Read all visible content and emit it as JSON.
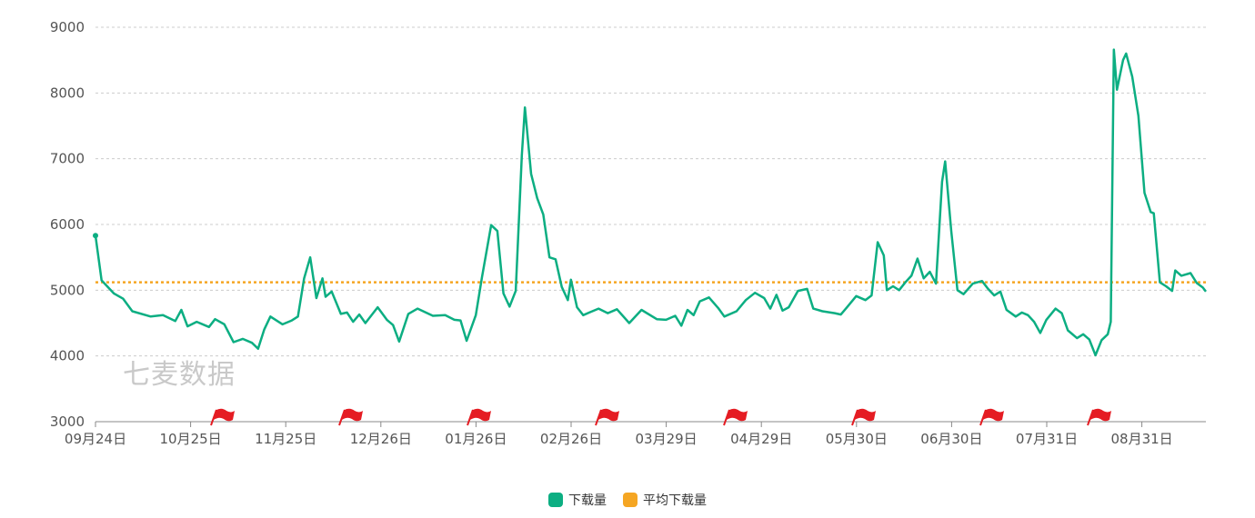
{
  "watermark": "七麦数据",
  "colors": {
    "series": "#0cae82",
    "average": "#f5a623",
    "flag": "#e51c23",
    "grid": "#cccccc",
    "axis": "#888888"
  },
  "chart_data": {
    "type": "line",
    "x_ticks": [
      "09月24日",
      "10月25日",
      "11月25日",
      "12月26日",
      "01月26日",
      "02月26日",
      "03月29日",
      "04月29日",
      "05月30日",
      "06月30日",
      "07月31日",
      "08月31日"
    ],
    "y_ticks": [
      3000,
      4000,
      5000,
      6000,
      7000,
      8000,
      9000
    ],
    "ylim": [
      3000,
      9000
    ],
    "x_range_days": [
      0,
      362
    ],
    "series": [
      {
        "name": "下载量",
        "points": [
          [
            0,
            5830
          ],
          [
            2,
            5150
          ],
          [
            6,
            4950
          ],
          [
            9,
            4870
          ],
          [
            12,
            4680
          ],
          [
            18,
            4600
          ],
          [
            22,
            4620
          ],
          [
            26,
            4530
          ],
          [
            28,
            4700
          ],
          [
            30,
            4450
          ],
          [
            33,
            4520
          ],
          [
            37,
            4440
          ],
          [
            39,
            4560
          ],
          [
            42,
            4480
          ],
          [
            45,
            4210
          ],
          [
            48,
            4260
          ],
          [
            51,
            4200
          ],
          [
            53,
            4110
          ],
          [
            55,
            4400
          ],
          [
            57,
            4600
          ],
          [
            61,
            4480
          ],
          [
            64,
            4540
          ],
          [
            66,
            4600
          ],
          [
            68,
            5180
          ],
          [
            70,
            5500
          ],
          [
            72,
            4880
          ],
          [
            74,
            5180
          ],
          [
            75,
            4900
          ],
          [
            77,
            4980
          ],
          [
            80,
            4640
          ],
          [
            82,
            4660
          ],
          [
            84,
            4520
          ],
          [
            86,
            4630
          ],
          [
            88,
            4500
          ],
          [
            92,
            4740
          ],
          [
            95,
            4550
          ],
          [
            97,
            4470
          ],
          [
            99,
            4220
          ],
          [
            102,
            4640
          ],
          [
            105,
            4720
          ],
          [
            110,
            4610
          ],
          [
            114,
            4620
          ],
          [
            117,
            4550
          ],
          [
            119,
            4540
          ],
          [
            121,
            4230
          ],
          [
            124,
            4620
          ],
          [
            126,
            5200
          ],
          [
            129,
            5990
          ],
          [
            131,
            5900
          ],
          [
            133,
            4950
          ],
          [
            135,
            4750
          ],
          [
            137,
            4990
          ],
          [
            139,
            7050
          ],
          [
            140,
            7780
          ],
          [
            142,
            6770
          ],
          [
            144,
            6400
          ],
          [
            146,
            6150
          ],
          [
            148,
            5500
          ],
          [
            150,
            5470
          ],
          [
            152,
            5050
          ],
          [
            154,
            4850
          ],
          [
            155,
            5160
          ],
          [
            157,
            4740
          ],
          [
            159,
            4620
          ],
          [
            161,
            4660
          ],
          [
            164,
            4720
          ],
          [
            167,
            4650
          ],
          [
            170,
            4710
          ],
          [
            174,
            4500
          ],
          [
            178,
            4700
          ],
          [
            183,
            4560
          ],
          [
            186,
            4550
          ],
          [
            189,
            4610
          ],
          [
            191,
            4460
          ],
          [
            193,
            4700
          ],
          [
            195,
            4620
          ],
          [
            197,
            4830
          ],
          [
            200,
            4890
          ],
          [
            203,
            4730
          ],
          [
            205,
            4600
          ],
          [
            209,
            4680
          ],
          [
            212,
            4850
          ],
          [
            215,
            4960
          ],
          [
            218,
            4880
          ],
          [
            220,
            4720
          ],
          [
            222,
            4930
          ],
          [
            224,
            4690
          ],
          [
            226,
            4740
          ],
          [
            229,
            4990
          ],
          [
            232,
            5020
          ],
          [
            234,
            4720
          ],
          [
            237,
            4680
          ],
          [
            241,
            4650
          ],
          [
            243,
            4630
          ],
          [
            245,
            4740
          ],
          [
            248,
            4910
          ],
          [
            251,
            4850
          ],
          [
            253,
            4920
          ],
          [
            255,
            5730
          ],
          [
            257,
            5530
          ],
          [
            258,
            5000
          ],
          [
            260,
            5060
          ],
          [
            262,
            5000
          ],
          [
            264,
            5120
          ],
          [
            266,
            5220
          ],
          [
            268,
            5480
          ],
          [
            270,
            5180
          ],
          [
            272,
            5280
          ],
          [
            274,
            5100
          ],
          [
            276,
            6650
          ],
          [
            277,
            6960
          ],
          [
            279,
            5900
          ],
          [
            281,
            5000
          ],
          [
            283,
            4940
          ],
          [
            286,
            5100
          ],
          [
            289,
            5140
          ],
          [
            291,
            5020
          ],
          [
            293,
            4920
          ],
          [
            295,
            4980
          ],
          [
            297,
            4700
          ],
          [
            300,
            4600
          ],
          [
            302,
            4660
          ],
          [
            304,
            4620
          ],
          [
            306,
            4520
          ],
          [
            308,
            4350
          ],
          [
            310,
            4550
          ],
          [
            313,
            4720
          ],
          [
            315,
            4650
          ],
          [
            317,
            4390
          ],
          [
            320,
            4270
          ],
          [
            322,
            4330
          ],
          [
            324,
            4250
          ],
          [
            326,
            4010
          ],
          [
            328,
            4240
          ],
          [
            330,
            4330
          ],
          [
            331,
            4520
          ],
          [
            332,
            8660
          ],
          [
            333,
            8050
          ],
          [
            335,
            8500
          ],
          [
            336,
            8600
          ],
          [
            338,
            8250
          ],
          [
            340,
            7650
          ],
          [
            342,
            6480
          ],
          [
            344,
            6190
          ],
          [
            345,
            6170
          ],
          [
            347,
            5120
          ],
          [
            349,
            5060
          ],
          [
            351,
            4990
          ],
          [
            352,
            5300
          ],
          [
            354,
            5220
          ],
          [
            357,
            5260
          ],
          [
            359,
            5110
          ],
          [
            361,
            5040
          ],
          [
            362,
            4980
          ]
        ]
      },
      {
        "name": "平均下载量",
        "value": 5120
      }
    ]
  }
}
